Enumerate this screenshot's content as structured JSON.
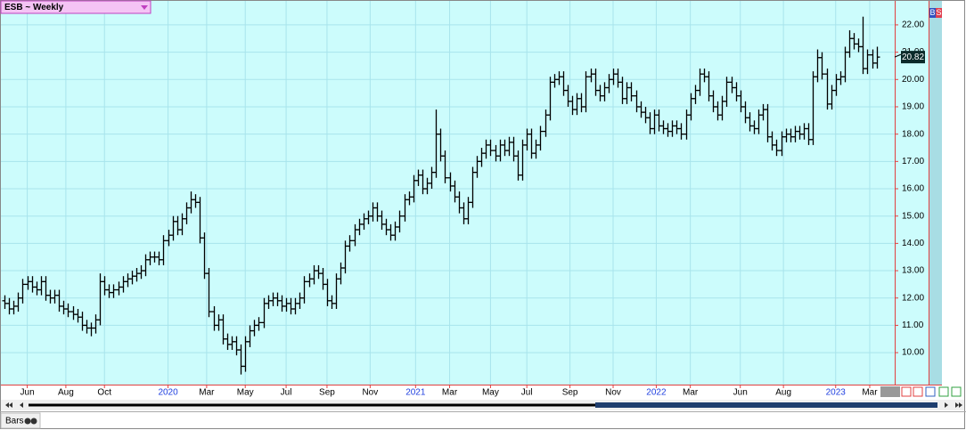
{
  "chart_data": {
    "type": "ohlc",
    "title": "ESB ~ Weekly",
    "buttons": [
      "B",
      "S"
    ],
    "footer": "Bars",
    "color": "#000000",
    "grid": true,
    "xlim": [
      0,
      197
    ],
    "xticks": [
      {
        "value": 6,
        "label": "Jun"
      },
      {
        "value": 14.5,
        "label": "Aug"
      },
      {
        "value": 23,
        "label": "Oct"
      },
      {
        "value": 37,
        "label": "2020"
      },
      {
        "value": 45.5,
        "label": "Mar"
      },
      {
        "value": 54,
        "label": "May"
      },
      {
        "value": 63,
        "label": "Jul"
      },
      {
        "value": 72,
        "label": "Sep"
      },
      {
        "value": 81.5,
        "label": "Nov"
      },
      {
        "value": 91.5,
        "label": "2021"
      },
      {
        "value": 99,
        "label": "Mar"
      },
      {
        "value": 108,
        "label": "May"
      },
      {
        "value": 116,
        "label": "Jul"
      },
      {
        "value": 125.5,
        "label": "Sep"
      },
      {
        "value": 135,
        "label": "Nov"
      },
      {
        "value": 144.5,
        "label": "2022"
      },
      {
        "value": 152,
        "label": "Mar"
      },
      {
        "value": 163,
        "label": "Jun"
      },
      {
        "value": 172.5,
        "label": "Aug"
      },
      {
        "value": 184,
        "label": "2023"
      },
      {
        "value": 191.5,
        "label": "Mar"
      }
    ],
    "ylim": [
      8.83,
      22.91
    ],
    "yticks": [
      {
        "value": 10,
        "label": "10.00"
      },
      {
        "value": 11,
        "label": "11.00"
      },
      {
        "value": 12,
        "label": "12.00"
      },
      {
        "value": 13,
        "label": "13.00"
      },
      {
        "value": 14,
        "label": "14.00"
      },
      {
        "value": 15,
        "label": "15.00"
      },
      {
        "value": 16,
        "label": "16.00"
      },
      {
        "value": 17,
        "label": "17.00"
      },
      {
        "value": 18,
        "label": "18.00"
      },
      {
        "value": 19,
        "label": "19.00"
      },
      {
        "value": 20,
        "label": "20.00"
      },
      {
        "value": 21,
        "label": "21.00"
      },
      {
        "value": 22,
        "label": "22.00"
      }
    ],
    "open": [
      11.9,
      11.8,
      11.6,
      11.7,
      12.0,
      12.5,
      12.6,
      12.4,
      12.3,
      12.6,
      12.1,
      12.0,
      12.1,
      11.7,
      11.6,
      11.5,
      11.4,
      11.3,
      11.0,
      10.9,
      10.9,
      11.2,
      12.6,
      12.3,
      12.2,
      12.3,
      12.4,
      12.6,
      12.7,
      12.8,
      12.9,
      13.0,
      13.4,
      13.5,
      13.5,
      13.4,
      14.1,
      14.3,
      14.8,
      14.5,
      14.9,
      15.3,
      15.6,
      15.5,
      14.2,
      12.9,
      11.5,
      11.0,
      11.2,
      10.5,
      10.3,
      10.4,
      10.1,
      9.5,
      10.4,
      10.8,
      11.0,
      11.1,
      11.8,
      11.9,
      12.0,
      11.9,
      11.7,
      11.8,
      11.6,
      11.8,
      12.0,
      12.6,
      12.7,
      13.0,
      12.9,
      12.5,
      11.9,
      11.8,
      12.7,
      13.1,
      13.9,
      14.1,
      14.5,
      14.7,
      14.9,
      15.0,
      15.3,
      15.0,
      14.7,
      14.5,
      14.3,
      14.6,
      15.0,
      15.6,
      15.7,
      16.3,
      16.5,
      16.0,
      16.2,
      16.6,
      18.0,
      17.2,
      16.4,
      16.1,
      15.7,
      15.3,
      14.9,
      15.5,
      16.6,
      17.0,
      17.3,
      17.6,
      17.4,
      17.2,
      17.6,
      17.4,
      17.7,
      17.2,
      16.5,
      17.6,
      18.0,
      17.3,
      17.6,
      18.1,
      18.7,
      19.9,
      20.0,
      20.1,
      19.6,
      19.2,
      18.9,
      19.3,
      19.0,
      20.1,
      20.2,
      19.6,
      19.4,
      19.7,
      20.0,
      20.2,
      19.9,
      19.3,
      19.7,
      19.4,
      19.0,
      18.8,
      18.6,
      18.2,
      18.7,
      18.3,
      18.2,
      18.1,
      18.3,
      18.2,
      18.0,
      18.7,
      19.3,
      19.6,
      20.2,
      20.1,
      19.4,
      19.0,
      18.7,
      19.2,
      19.9,
      19.7,
      19.4,
      19.0,
      18.6,
      18.3,
      18.2,
      18.7,
      18.9,
      17.9,
      17.6,
      17.4,
      17.9,
      18.0,
      17.9,
      18.1,
      18.0,
      18.2,
      17.8,
      20.1,
      20.8,
      20.2,
      19.1,
      19.6,
      20.0,
      20.1,
      21.0,
      21.5,
      21.3,
      21.2,
      20.4,
      20.9,
      20.6
    ],
    "high": [
      12.1,
      12.0,
      11.9,
      12.2,
      12.7,
      12.8,
      12.8,
      12.6,
      12.8,
      12.8,
      12.3,
      12.3,
      12.3,
      11.9,
      11.8,
      11.7,
      11.6,
      11.5,
      11.2,
      11.1,
      11.4,
      12.9,
      12.8,
      12.5,
      12.5,
      12.6,
      12.8,
      12.9,
      13.0,
      13.1,
      13.2,
      13.6,
      13.7,
      13.7,
      13.7,
      14.3,
      14.5,
      15.0,
      15.0,
      15.1,
      15.5,
      15.9,
      15.8,
      15.7,
      14.4,
      13.1,
      11.7,
      11.4,
      11.4,
      10.7,
      10.6,
      10.6,
      10.3,
      10.6,
      11.0,
      11.2,
      11.3,
      12.0,
      12.1,
      12.2,
      12.2,
      12.1,
      12.0,
      12.0,
      12.0,
      12.2,
      12.8,
      12.9,
      13.2,
      13.2,
      13.1,
      12.7,
      12.1,
      12.9,
      13.3,
      14.1,
      14.3,
      14.7,
      14.9,
      15.1,
      15.2,
      15.5,
      15.5,
      15.2,
      14.9,
      14.7,
      14.8,
      15.2,
      15.8,
      15.9,
      16.5,
      16.7,
      16.7,
      16.4,
      16.8,
      18.9,
      18.2,
      17.4,
      16.6,
      16.3,
      15.9,
      15.5,
      15.7,
      16.8,
      17.2,
      17.5,
      17.8,
      17.8,
      17.6,
      17.8,
      17.8,
      17.9,
      17.9,
      17.4,
      17.8,
      18.2,
      18.2,
      17.8,
      18.3,
      18.9,
      20.1,
      20.2,
      20.3,
      20.3,
      19.8,
      19.4,
      19.5,
      19.5,
      20.3,
      20.4,
      20.4,
      19.8,
      19.9,
      20.2,
      20.4,
      20.4,
      20.1,
      19.9,
      19.9,
      19.6,
      19.2,
      19.0,
      18.8,
      18.9,
      18.9,
      18.5,
      18.4,
      18.5,
      18.5,
      18.4,
      18.9,
      19.5,
      19.8,
      20.4,
      20.4,
      20.3,
      19.6,
      19.2,
      19.4,
      20.1,
      20.1,
      19.9,
      19.6,
      19.2,
      18.8,
      18.5,
      18.9,
      19.1,
      19.1,
      18.1,
      17.8,
      18.1,
      18.2,
      18.2,
      18.3,
      18.3,
      18.4,
      18.4,
      20.3,
      21.1,
      21.0,
      20.4,
      19.8,
      20.2,
      20.3,
      21.2,
      21.8,
      21.7,
      21.5,
      22.3,
      21.1,
      21.1,
      21.2
    ],
    "low": [
      11.6,
      11.4,
      11.4,
      11.5,
      11.8,
      12.3,
      12.2,
      12.1,
      12.1,
      11.9,
      11.8,
      11.8,
      11.5,
      11.4,
      11.3,
      11.2,
      11.1,
      10.8,
      10.7,
      10.6,
      10.7,
      11.0,
      12.1,
      12.0,
      12.0,
      12.1,
      12.2,
      12.4,
      12.5,
      12.6,
      12.7,
      12.8,
      13.2,
      13.3,
      13.2,
      13.2,
      13.9,
      14.1,
      14.3,
      14.3,
      14.7,
      15.1,
      15.3,
      14.0,
      12.7,
      11.3,
      10.8,
      10.8,
      10.3,
      10.1,
      10.1,
      9.9,
      9.2,
      9.3,
      10.2,
      10.6,
      10.8,
      10.9,
      11.6,
      11.7,
      11.7,
      11.5,
      11.5,
      11.4,
      11.4,
      11.6,
      11.8,
      12.4,
      12.5,
      12.7,
      12.3,
      11.7,
      11.6,
      11.6,
      12.5,
      12.9,
      13.7,
      13.9,
      14.3,
      14.5,
      14.7,
      14.8,
      14.8,
      14.5,
      14.3,
      14.1,
      14.1,
      14.4,
      14.8,
      15.4,
      15.5,
      16.1,
      15.8,
      15.8,
      16.0,
      16.4,
      17.0,
      16.2,
      15.9,
      15.5,
      15.1,
      14.7,
      14.7,
      15.3,
      16.4,
      16.8,
      17.1,
      17.2,
      17.0,
      17.0,
      17.2,
      17.2,
      17.0,
      16.3,
      16.3,
      17.4,
      17.1,
      17.1,
      17.4,
      17.9,
      18.5,
      19.7,
      19.8,
      19.4,
      19.0,
      18.7,
      18.7,
      18.8,
      18.8,
      19.9,
      19.4,
      19.2,
      19.2,
      19.5,
      19.8,
      19.7,
      19.1,
      19.1,
      19.2,
      18.8,
      18.6,
      18.4,
      18.0,
      18.0,
      18.1,
      18.0,
      17.9,
      17.9,
      18.0,
      17.8,
      17.8,
      18.5,
      19.1,
      19.4,
      19.9,
      19.2,
      18.8,
      18.5,
      18.5,
      19.0,
      19.5,
      19.2,
      18.8,
      18.4,
      18.1,
      18.0,
      18.0,
      18.5,
      17.7,
      17.4,
      17.2,
      17.2,
      17.7,
      17.7,
      17.7,
      17.8,
      17.8,
      17.6,
      17.6,
      19.9,
      20.0,
      18.9,
      18.9,
      19.4,
      19.8,
      19.9,
      20.8,
      21.1,
      21.0,
      20.2,
      20.2,
      20.4,
      20.4
    ],
    "close": [
      11.8,
      11.6,
      11.7,
      12.0,
      12.5,
      12.6,
      12.4,
      12.3,
      12.6,
      12.1,
      12.0,
      12.1,
      11.7,
      11.6,
      11.5,
      11.4,
      11.3,
      11.0,
      10.9,
      10.9,
      11.2,
      12.6,
      12.3,
      12.2,
      12.3,
      12.4,
      12.6,
      12.7,
      12.8,
      12.9,
      13.0,
      13.4,
      13.5,
      13.5,
      13.4,
      14.1,
      14.3,
      14.8,
      14.5,
      14.9,
      15.3,
      15.6,
      15.5,
      14.2,
      12.9,
      11.5,
      11.0,
      11.2,
      10.5,
      10.3,
      10.4,
      10.1,
      9.5,
      10.4,
      10.8,
      11.0,
      11.1,
      11.8,
      11.9,
      12.0,
      11.9,
      11.7,
      11.8,
      11.6,
      11.8,
      12.0,
      12.6,
      12.7,
      13.0,
      12.9,
      12.5,
      11.9,
      11.8,
      12.7,
      13.1,
      13.9,
      14.1,
      14.5,
      14.7,
      14.9,
      15.0,
      15.3,
      15.0,
      14.7,
      14.5,
      14.3,
      14.6,
      15.0,
      15.6,
      15.7,
      16.3,
      16.5,
      16.0,
      16.2,
      16.6,
      18.0,
      17.2,
      16.4,
      16.1,
      15.7,
      15.3,
      14.9,
      15.5,
      16.6,
      17.0,
      17.3,
      17.6,
      17.4,
      17.2,
      17.6,
      17.4,
      17.7,
      17.2,
      16.5,
      17.6,
      18.0,
      17.3,
      17.6,
      18.1,
      18.7,
      19.9,
      20.0,
      20.1,
      19.6,
      19.2,
      18.9,
      19.3,
      19.0,
      20.1,
      20.2,
      19.6,
      19.4,
      19.7,
      20.0,
      20.2,
      19.9,
      19.3,
      19.7,
      19.4,
      19.0,
      18.8,
      18.6,
      18.2,
      18.7,
      18.3,
      18.2,
      18.1,
      18.3,
      18.2,
      18.0,
      18.7,
      19.3,
      19.6,
      20.2,
      20.1,
      19.4,
      19.0,
      18.7,
      19.2,
      19.9,
      19.7,
      19.4,
      19.0,
      18.6,
      18.3,
      18.2,
      18.7,
      18.9,
      17.9,
      17.6,
      17.4,
      17.9,
      18.0,
      17.9,
      18.1,
      18.0,
      18.2,
      17.8,
      20.1,
      20.8,
      20.2,
      19.1,
      19.6,
      20.0,
      20.1,
      21.0,
      21.5,
      21.3,
      21.2,
      20.4,
      20.9,
      20.6,
      20.82
    ]
  }
}
